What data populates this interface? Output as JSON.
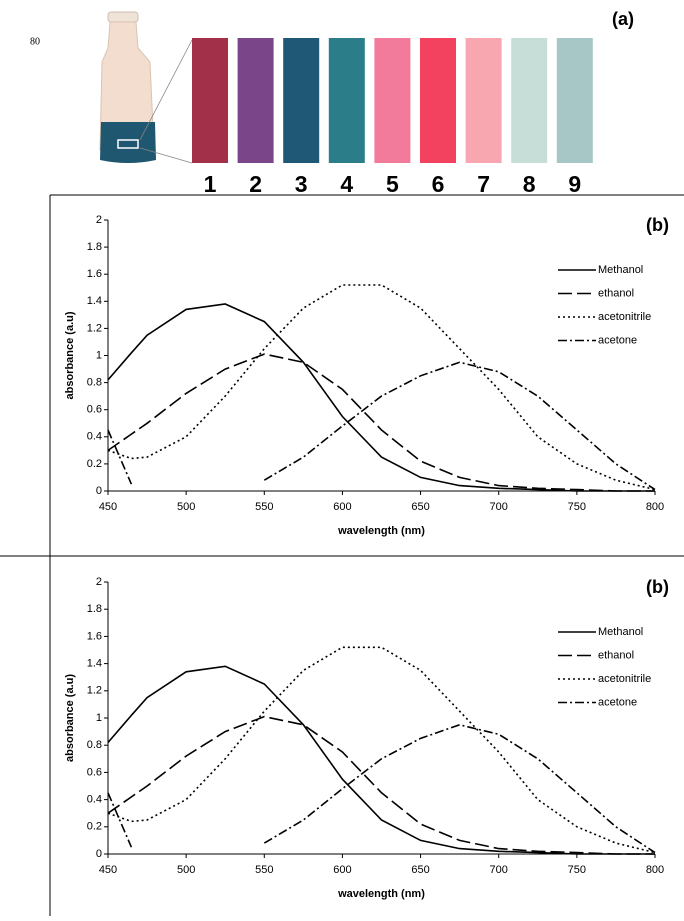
{
  "figure_a": {
    "page_number": "80",
    "label": "(a)",
    "samples": [
      "1",
      "2",
      "3",
      "4",
      "5",
      "6",
      "7",
      "8",
      "9"
    ],
    "sample_colors": [
      "#a33049",
      "#7b4589",
      "#1f5877",
      "#2a7d89",
      "#f27a9a",
      "#f3425f",
      "#f8a7b1",
      "#c7ddd7",
      "#a7c7c6"
    ]
  },
  "chart_data": [
    {
      "type": "line",
      "title": "(b)",
      "x_label": "wavelength (nm)",
      "y_label": "absorbance (a.u)",
      "x": [
        450,
        465,
        475,
        500,
        525,
        550,
        575,
        600,
        625,
        650,
        675,
        700,
        725,
        750,
        775,
        800
      ],
      "xlim": [
        450,
        800
      ],
      "xticks": [
        450,
        500,
        550,
        600,
        650,
        700,
        750,
        800
      ],
      "ylim": [
        0,
        2
      ],
      "yticks": [
        0,
        {
          "value": 0.2,
          "label": "0.2"
        },
        {
          "value": 0.4,
          "label": "0.4"
        },
        {
          "value": 0.6,
          "label": "0.6"
        },
        {
          "value": 0.8,
          "label": "0.8"
        },
        1,
        {
          "value": 1.2,
          "label": "1.2"
        },
        {
          "value": 1.4,
          "label": "1.4"
        },
        {
          "value": 1.6,
          "label": "1.6"
        },
        {
          "value": 1.8,
          "label": "1.8"
        },
        2
      ],
      "legend": "top-right",
      "series": [
        {
          "name": "Methanol",
          "color": "#000000",
          "dash": "solid",
          "values": [
            0.82,
            1.02,
            1.15,
            1.34,
            1.38,
            1.25,
            0.95,
            0.55,
            0.25,
            0.1,
            0.04,
            0.02,
            0.01,
            0,
            0,
            0
          ]
        },
        {
          "name": "ethanol",
          "color": "#000000",
          "dash": "long-dash",
          "values": [
            0.3,
            0.42,
            0.5,
            0.72,
            0.9,
            1.01,
            0.95,
            0.75,
            0.45,
            0.22,
            0.1,
            0.04,
            0.02,
            0.01,
            0,
            0
          ]
        },
        {
          "name": "acetonitrile",
          "color": "#000000",
          "dash": "dot",
          "values": [
            0.3,
            0.24,
            0.25,
            0.4,
            0.7,
            1.05,
            1.35,
            1.52,
            1.52,
            1.35,
            1.05,
            0.75,
            0.4,
            0.2,
            0.08,
            0.01
          ]
        },
        {
          "name": "acetone",
          "color": "#000000",
          "dash": "dash-dot",
          "values": [
            0.45,
            0.05,
            null,
            null,
            null,
            0.08,
            0.25,
            0.48,
            0.7,
            0.85,
            0.95,
            0.88,
            0.7,
            0.45,
            0.2,
            0.01
          ]
        }
      ]
    },
    {
      "type": "line",
      "title": "(b)",
      "x_label": "wavelength (nm)",
      "y_label": "absorbance (a.u)",
      "x": [
        450,
        465,
        475,
        500,
        525,
        550,
        575,
        600,
        625,
        650,
        675,
        700,
        725,
        750,
        775,
        800
      ],
      "xlim": [
        450,
        800
      ],
      "xticks": [
        450,
        500,
        550,
        600,
        650,
        700,
        750,
        800
      ],
      "ylim": [
        0,
        2
      ],
      "yticks": [
        0,
        {
          "value": 0.2,
          "label": "0.2"
        },
        {
          "value": 0.4,
          "label": "0.4"
        },
        {
          "value": 0.6,
          "label": "0.6"
        },
        {
          "value": 0.8,
          "label": "0.8"
        },
        1,
        {
          "value": 1.2,
          "label": "1.2"
        },
        {
          "value": 1.4,
          "label": "1.4"
        },
        {
          "value": 1.6,
          "label": "1.6"
        },
        {
          "value": 1.8,
          "label": "1.8"
        },
        2
      ],
      "legend": "top-right",
      "series": [
        {
          "name": "Methanol",
          "color": "#000000",
          "dash": "solid",
          "values": [
            0.82,
            1.02,
            1.15,
            1.34,
            1.38,
            1.25,
            0.95,
            0.55,
            0.25,
            0.1,
            0.04,
            0.02,
            0.01,
            0,
            0,
            0
          ]
        },
        {
          "name": "ethanol",
          "color": "#000000",
          "dash": "long-dash",
          "values": [
            0.3,
            0.42,
            0.5,
            0.72,
            0.9,
            1.01,
            0.95,
            0.75,
            0.45,
            0.22,
            0.1,
            0.04,
            0.02,
            0.01,
            0,
            0
          ]
        },
        {
          "name": "acetonitrile",
          "color": "#000000",
          "dash": "dot",
          "values": [
            0.3,
            0.24,
            0.25,
            0.4,
            0.7,
            1.05,
            1.35,
            1.52,
            1.52,
            1.35,
            1.05,
            0.75,
            0.4,
            0.2,
            0.08,
            0.01
          ]
        },
        {
          "name": "acetone",
          "color": "#000000",
          "dash": "dash-dot",
          "values": [
            0.45,
            0.05,
            null,
            null,
            null,
            0.08,
            0.25,
            0.48,
            0.7,
            0.85,
            0.95,
            0.88,
            0.7,
            0.45,
            0.2,
            0.01
          ]
        }
      ]
    }
  ]
}
